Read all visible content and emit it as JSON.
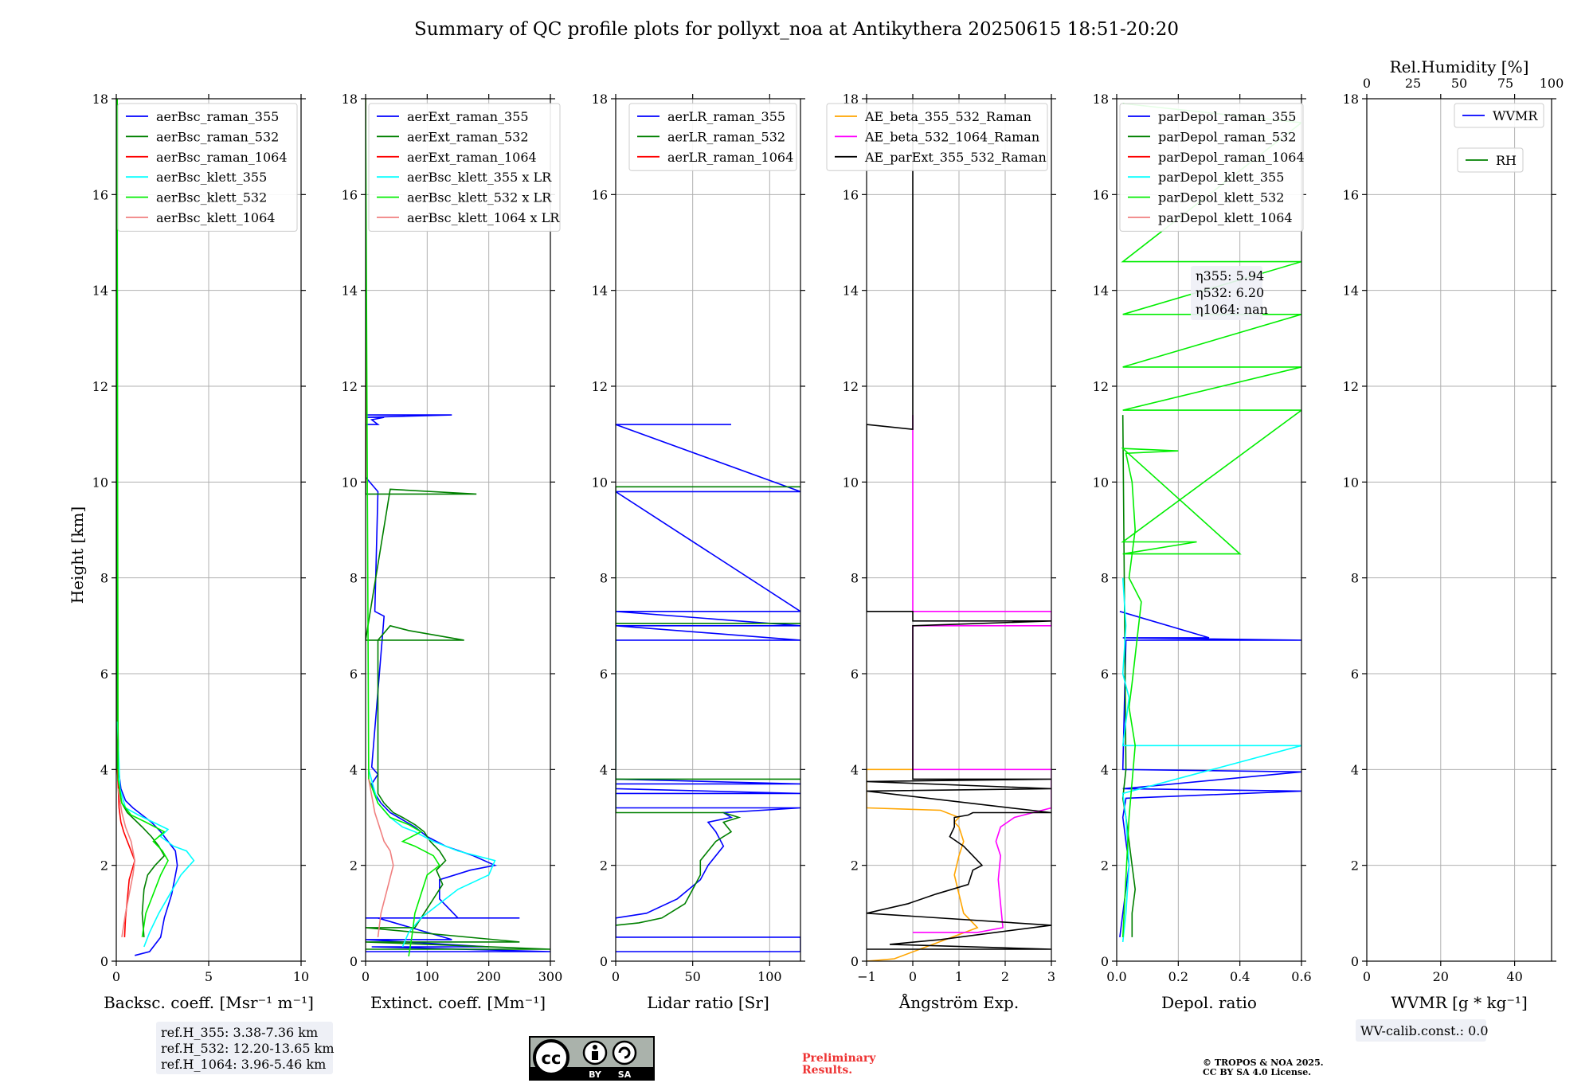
{
  "title": "Summary of QC profile plots for pollyxt_noa at Antikythera 20250615 18:51-20:20",
  "ylabel": "Height [km]",
  "yticks": [
    "0",
    "2",
    "4",
    "6",
    "8",
    "10",
    "12",
    "14",
    "16",
    "18"
  ],
  "ylim": [
    0,
    18
  ],
  "grid": true,
  "chart_data": [
    {
      "type": "line",
      "xlabel": "Backsc. coeff. [Msr⁻¹ m⁻¹]",
      "xlim": [
        0,
        10
      ],
      "xticks": [
        0,
        5,
        10
      ],
      "xticklabels": [
        "0",
        "5",
        "10"
      ],
      "legend_placement": "top-right",
      "series": [
        {
          "name": "aerBsc_raman_355",
          "color": "#0000ff",
          "x": [
            1.0,
            1.8,
            2.4,
            2.6,
            3.0,
            3.3,
            3.2,
            2.8,
            2.4,
            1.9,
            1.4,
            0.9,
            0.5,
            0.25,
            0.12,
            0.06,
            0.05
          ],
          "y": [
            0.12,
            0.2,
            0.5,
            0.9,
            1.4,
            2.0,
            2.3,
            2.5,
            2.7,
            2.9,
            3.05,
            3.2,
            3.35,
            3.6,
            4.0,
            6,
            18
          ]
        },
        {
          "name": "aerBsc_raman_532",
          "color": "#008000",
          "x": [
            1.5,
            1.4,
            1.5,
            1.7,
            2.1,
            2.6,
            2.3,
            1.9,
            1.4,
            1.0,
            0.6,
            0.3,
            0.12,
            0.06,
            0.05
          ],
          "y": [
            0.5,
            1.0,
            1.5,
            1.8,
            2.0,
            2.2,
            2.4,
            2.6,
            2.8,
            2.95,
            3.1,
            3.3,
            3.6,
            4.0,
            18
          ]
        },
        {
          "name": "aerBsc_raman_1064",
          "color": "#ff0000",
          "x": [
            0.45,
            0.5,
            0.6,
            0.7,
            0.85,
            1.0,
            0.8,
            0.6,
            0.4,
            0.25,
            0.15,
            0.06
          ],
          "y": [
            0.5,
            0.9,
            1.3,
            1.7,
            1.9,
            2.1,
            2.3,
            2.5,
            2.7,
            2.9,
            3.2,
            4.0
          ]
        },
        {
          "name": "aerBsc_klett_355",
          "color": "#00ffff",
          "x": [
            1.5,
            1.8,
            2.3,
            2.9,
            3.5,
            4.2,
            3.8,
            3.1,
            2.4,
            2.8,
            2.0,
            1.2,
            0.5,
            0.2,
            0.06
          ],
          "y": [
            0.3,
            0.6,
            1.0,
            1.4,
            1.8,
            2.1,
            2.3,
            2.4,
            2.6,
            2.75,
            2.9,
            3.05,
            3.2,
            3.6,
            5
          ]
        },
        {
          "name": "aerBsc_klett_532",
          "color": "#00ee00",
          "x": [
            1.4,
            1.6,
            2.0,
            2.4,
            2.8,
            2.5,
            2.0,
            2.6,
            1.6,
            0.8,
            0.3,
            0.1,
            0.04
          ],
          "y": [
            0.5,
            1.0,
            1.4,
            1.8,
            2.1,
            2.3,
            2.5,
            2.7,
            2.9,
            3.05,
            3.3,
            3.8,
            18
          ]
        },
        {
          "name": "aerBsc_klett_1064",
          "color": "#f08080",
          "x": [
            0.3,
            0.5,
            0.7,
            0.9,
            1.0,
            0.8,
            0.5,
            0.3,
            0.1
          ],
          "y": [
            0.5,
            1.0,
            1.4,
            1.8,
            2.1,
            2.5,
            2.8,
            3.1,
            3.6
          ]
        }
      ]
    },
    {
      "type": "line",
      "xlabel": "Extinct. coeff. [Mm⁻¹]",
      "xlim": [
        0,
        300
      ],
      "xticks": [
        0,
        100,
        200,
        300
      ],
      "xticklabels": [
        "0",
        "100",
        "200",
        "300"
      ],
      "legend_placement": "top-left",
      "series": [
        {
          "name": "aerExt_raman_355",
          "color": "#0000ff",
          "x": [
            0,
            300,
            10,
            200,
            0,
            140,
            20,
            250,
            0,
            200,
            150,
            120,
            120,
            170,
            210,
            175,
            130,
            100,
            80,
            60,
            40,
            25,
            15,
            10,
            20,
            10,
            30,
            15,
            20,
            0,
            0,
            20,
            10,
            30,
            0,
            140,
            0,
            0
          ],
          "y": [
            0.2,
            0.2,
            0.3,
            0.3,
            0.45,
            0.45,
            0.9,
            0.9,
            0.9,
            0.9,
            0.9,
            1.3,
            1.7,
            1.9,
            2.0,
            2.2,
            2.4,
            2.6,
            2.8,
            2.95,
            3.1,
            3.3,
            3.5,
            3.7,
            3.9,
            4.05,
            7.2,
            7.3,
            9.8,
            10.1,
            11.2,
            11.2,
            11.3,
            11.35,
            11.35,
            11.4,
            11.4,
            18
          ]
        },
        {
          "name": "aerExt_raman_532",
          "color": "#008000",
          "x": [
            0,
            300,
            0,
            250,
            0,
            80,
            95,
            110,
            125,
            115,
            130,
            120,
            105,
            95,
            80,
            60,
            45,
            30,
            20,
            20,
            40,
            70,
            160,
            0,
            40,
            180,
            0,
            0
          ],
          "y": [
            0.25,
            0.25,
            0.4,
            0.4,
            0.7,
            0.7,
            1.0,
            1.3,
            1.6,
            1.9,
            2.1,
            2.3,
            2.5,
            2.7,
            2.85,
            3.0,
            3.1,
            3.3,
            3.5,
            6.7,
            7.0,
            6.9,
            6.7,
            6.7,
            9.85,
            9.75,
            9.75,
            18
          ]
        },
        {
          "name": "aerExt_raman_1064",
          "color": "#ff0000",
          "x": [
            0,
            0
          ],
          "y": [
            10,
            18
          ]
        },
        {
          "name": "aerBsc_klett_355 x LR",
          "color": "#00ffff",
          "x": [
            60,
            70,
            90,
            120,
            150,
            200,
            210,
            150,
            110,
            80,
            60,
            40,
            20,
            5
          ],
          "y": [
            0.3,
            0.6,
            0.9,
            1.2,
            1.5,
            1.8,
            2.1,
            2.3,
            2.5,
            2.7,
            2.8,
            3.0,
            3.3,
            4.0
          ]
        },
        {
          "name": "aerBsc_klett_532 x LR",
          "color": "#00ee00",
          "x": [
            70,
            75,
            80,
            90,
            100,
            120,
            110,
            80,
            60,
            90,
            70,
            40,
            20,
            5,
            0
          ],
          "y": [
            0.1,
            0.5,
            1.0,
            1.4,
            1.8,
            2.0,
            2.2,
            2.4,
            2.5,
            2.7,
            2.85,
            3.0,
            3.3,
            3.8,
            18
          ]
        },
        {
          "name": "aerBsc_klett_1064 x LR",
          "color": "#f08080",
          "x": [
            20,
            25,
            35,
            45,
            40,
            30,
            25,
            20,
            15,
            5
          ],
          "y": [
            0.5,
            1.0,
            1.5,
            2.0,
            2.3,
            2.5,
            2.7,
            2.9,
            3.1,
            3.8
          ]
        }
      ]
    },
    {
      "type": "line",
      "xlabel": "Lidar ratio [Sr]",
      "xlim": [
        0,
        120
      ],
      "xticks": [
        0,
        50,
        100
      ],
      "xticklabels": [
        "0",
        "50",
        "100"
      ],
      "legend_placement": "top-right",
      "series": [
        {
          "name": "aerLR_raman_355",
          "color": "#0000ff",
          "x": [
            0,
            120,
            120,
            0,
            0,
            0,
            20,
            40,
            55,
            60,
            70,
            65,
            60,
            75,
            70,
            120,
            0,
            0,
            120,
            0,
            0,
            120,
            0,
            0,
            120,
            0,
            120,
            0,
            120,
            0,
            120,
            0,
            75,
            0
          ],
          "y": [
            0.2,
            0.2,
            0.5,
            0.5,
            0.9,
            0.9,
            1.0,
            1.3,
            1.7,
            2.0,
            2.4,
            2.7,
            2.9,
            3.0,
            3.1,
            3.2,
            3.2,
            3.5,
            3.5,
            3.6,
            3.7,
            3.7,
            3.8,
            6.7,
            6.7,
            7.0,
            7.0,
            7.3,
            7.3,
            9.8,
            9.8,
            11.2,
            11.2,
            11.2
          ]
        },
        {
          "name": "aerLR_raman_532",
          "color": "#008000",
          "x": [
            0,
            15,
            30,
            45,
            50,
            55,
            55,
            60,
            65,
            75,
            70,
            80,
            70,
            30,
            0,
            0,
            120,
            0,
            0,
            120,
            0,
            0,
            120,
            0
          ],
          "y": [
            0.75,
            0.8,
            0.9,
            1.2,
            1.5,
            1.8,
            2.1,
            2.3,
            2.5,
            2.7,
            2.9,
            3.0,
            3.1,
            3.1,
            3.1,
            3.8,
            3.8,
            3.8,
            7.05,
            7.05,
            7.05,
            9.9,
            9.9,
            9.9
          ]
        },
        {
          "name": "aerLR_raman_1064",
          "color": "#ff0000",
          "x": [],
          "y": []
        }
      ]
    },
    {
      "type": "line",
      "xlabel": "Ångström Exp.",
      "xlim": [
        -1,
        3
      ],
      "xticks": [
        -1,
        0,
        1,
        2,
        3
      ],
      "xticklabels": [
        "−1",
        "0",
        "1",
        "2",
        "3"
      ],
      "legend_placement": "top-right",
      "series": [
        {
          "name": "AE_beta_355_532_Raman",
          "color": "#ffa500",
          "x": [
            -1,
            -0.4,
            1.4,
            1.1,
            1.0,
            0.9,
            1.0,
            1.1,
            1.0,
            0.9,
            1.0,
            0.6,
            -1,
            -1,
            0,
            0
          ],
          "y": [
            0.0,
            0.05,
            0.7,
            1.0,
            1.4,
            1.8,
            2.2,
            2.5,
            2.8,
            2.9,
            3.0,
            3.15,
            3.2,
            4.0,
            4.0,
            4.0
          ]
        },
        {
          "name": "AE_beta_532_1064_Raman",
          "color": "#ff00ff",
          "x": [
            0,
            1.4,
            1.95,
            1.9,
            1.85,
            1.9,
            1.8,
            1.9,
            2.2,
            3.0,
            3.0,
            0,
            0,
            3.0,
            3.0,
            0,
            0,
            0
          ],
          "y": [
            0.6,
            0.6,
            0.7,
            1.2,
            1.7,
            2.2,
            2.5,
            2.8,
            3.0,
            3.2,
            4.0,
            4.0,
            7.0,
            7.0,
            7.3,
            7.3,
            11.0,
            11.4
          ]
        },
        {
          "name": "AE_parExt_355_532_Raman",
          "color": "#000000",
          "x": [
            -1,
            3,
            -0.5,
            0.6,
            3,
            -1,
            -0.1,
            0.5,
            1.2,
            1.3,
            1.5,
            1.3,
            1.1,
            0.8,
            0.9,
            0.9,
            1.2,
            1.3,
            3,
            -1,
            3,
            -1,
            3,
            0,
            0,
            3,
            0,
            0,
            -1,
            -1,
            0,
            0,
            0
          ],
          "y": [
            0.25,
            0.25,
            0.35,
            0.45,
            0.75,
            1.0,
            1.2,
            1.4,
            1.6,
            1.9,
            2.0,
            2.2,
            2.4,
            2.6,
            2.8,
            3.0,
            3.05,
            3.1,
            3.1,
            3.55,
            3.6,
            3.75,
            3.8,
            3.8,
            7.0,
            7.1,
            7.1,
            7.3,
            7.3,
            11.2,
            11.1,
            11.5,
            17.9
          ]
        }
      ]
    },
    {
      "type": "line",
      "xlabel": "Depol. ratio",
      "xlim": [
        0,
        0.6
      ],
      "xticks": [
        0,
        0.2,
        0.4,
        0.6
      ],
      "xticklabels": [
        "0.0",
        "0.2",
        "0.4",
        "0.6"
      ],
      "legend_placement": "top-left",
      "series": [
        {
          "name": "parDepol_raman_355",
          "color": "#0000ff",
          "x": [
            0.01,
            0.02,
            0.03,
            0.04,
            0.03,
            0.02,
            0.03,
            0.6,
            0.02,
            0.6,
            0.02,
            0.03,
            0.6,
            0.02,
            0.3,
            0.01
          ],
          "y": [
            0.5,
            1.0,
            1.5,
            2.0,
            2.5,
            3.0,
            3.4,
            3.55,
            3.6,
            3.95,
            4.0,
            6.7,
            6.7,
            6.75,
            6.75,
            7.3
          ]
        },
        {
          "name": "parDepol_raman_532",
          "color": "#008000",
          "x": [
            0.05,
            0.05,
            0.06,
            0.05,
            0.04,
            0.03,
            0.02,
            0.03,
            0.02
          ],
          "y": [
            0.5,
            1.0,
            1.5,
            2.0,
            2.5,
            3.0,
            3.4,
            4.0,
            11.4
          ]
        },
        {
          "name": "parDepol_raman_1064",
          "color": "#ff0000",
          "x": [],
          "y": []
        },
        {
          "name": "parDepol_klett_355",
          "color": "#00ffff",
          "x": [
            0.02,
            0.03,
            0.04,
            0.03,
            0.02,
            0.6,
            0.02,
            0.04,
            0.02,
            0.03,
            0.02
          ],
          "y": [
            0.4,
            1.0,
            2.0,
            3.0,
            3.5,
            4.5,
            4.5,
            5.5,
            6.0,
            7.0,
            8.0
          ]
        },
        {
          "name": "parDepol_klett_532",
          "color": "#00ee00",
          "x": [
            0.02,
            0.04,
            0.06,
            0.04,
            0.05,
            0.08,
            0.04,
            0.06,
            0.05,
            0.03,
            0.2,
            0.02,
            0.4,
            0.02,
            0.26,
            0.02,
            0.6,
            0.02,
            0.6,
            0.02,
            0.6,
            0.02,
            0.6,
            0.02,
            0.6,
            0.02
          ],
          "y": [
            0.5,
            3.0,
            4.5,
            5.3,
            5.8,
            7.5,
            8.0,
            9.0,
            10.0,
            10.6,
            10.65,
            10.7,
            8.5,
            8.5,
            8.75,
            8.75,
            11.5,
            11.5,
            12.4,
            12.4,
            13.5,
            13.5,
            14.6,
            14.6,
            17.5,
            17.9
          ]
        },
        {
          "name": "parDepol_klett_1064",
          "color": "#f08080",
          "x": [],
          "y": []
        }
      ]
    },
    {
      "type": "line",
      "xlabel": "WVMR [g * kg⁻¹]",
      "xlim": [
        0,
        50
      ],
      "xticks": [
        0,
        20,
        40
      ],
      "xticklabels": [
        "0",
        "20",
        "40"
      ],
      "top_axis_label": "Rel.Humidity [%]",
      "top_xlim": [
        0,
        100
      ],
      "top_xticks": [
        0,
        25,
        50,
        75,
        100
      ],
      "top_xticklabels": [
        "0",
        "25",
        "50",
        "75",
        "100"
      ],
      "legend_placement": "top-right",
      "series": [
        {
          "name": "WVMR",
          "color": "#0000ff",
          "x": [],
          "y": []
        },
        {
          "name": "RH",
          "color": "#008000",
          "x": [],
          "y": []
        }
      ]
    }
  ],
  "info_boxes": {
    "ref_heights": [
      "ref.H_355: 3.38-7.36 km",
      "ref.H_532: 12.20-13.65 km",
      "ref.H_1064: 3.96-5.46 km"
    ],
    "eta": [
      "η355: 5.94",
      "η532: 6.20",
      "η1064: nan"
    ],
    "wv_calib": "WV-calib.const.: 0.0",
    "preliminary": [
      "Preliminary",
      "Results."
    ],
    "copyright": [
      "© TROPOS & NOA 2025.",
      "CC BY SA 4.0 License."
    ],
    "cc_badge": [
      "BY",
      "SA"
    ]
  },
  "colors": {
    "blue": "#0000ff",
    "green": "#008000",
    "red": "#ff0000",
    "cyan": "#00ffff",
    "lime": "#00ee00",
    "salmon": "#f08080",
    "orange": "#ffa500",
    "magenta": "#ff00ff",
    "preliminary_text": "#ee3333"
  }
}
